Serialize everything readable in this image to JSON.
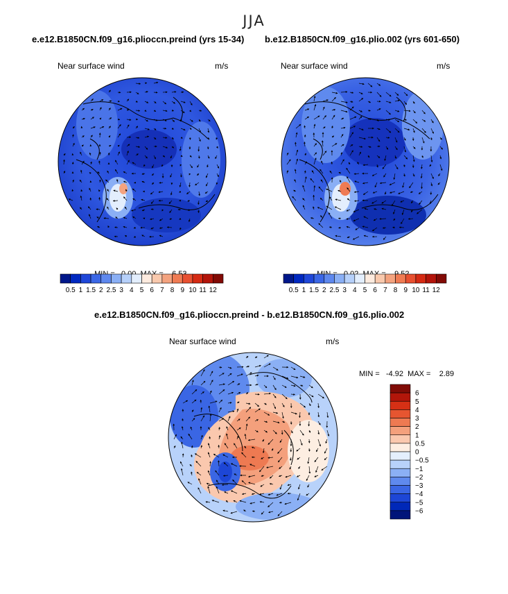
{
  "figure_title": "JJA",
  "palette_horizontal": [
    "#00178a",
    "#0028c0",
    "#1f47d9",
    "#3b67e6",
    "#5e88ee",
    "#8aaff5",
    "#b6d0fa",
    "#e3eefd",
    "#fdebdf",
    "#f9c9ad",
    "#f4a37f",
    "#ef7b53",
    "#e85030",
    "#d52a13",
    "#b3140a",
    "#820a05"
  ],
  "palette_vertical": [
    "#00157a",
    "#0028b8",
    "#1d46d6",
    "#3a66e4",
    "#5f8aee",
    "#8bb0f5",
    "#b8d2fa",
    "#e4effd",
    "#fdeee2",
    "#fac8ae",
    "#f4a07c",
    "#ee7a52",
    "#e65530",
    "#d63015",
    "#b2160a",
    "#800c06"
  ],
  "chart_data": [
    {
      "type": "heatmap",
      "projection": "north-polar-stereographic",
      "title": "e.e12.B1850CN.f09_g16.plioccn.preind (yrs 15-34)",
      "left_label": "Near surface wind",
      "units": "m/s",
      "min_label": "MIN =",
      "min_value": "0.00",
      "max_label": "MAX =",
      "max_value": "6.53",
      "colorbar_labels": [
        "0.5",
        "1",
        "1.5",
        "2",
        "2.5",
        "3",
        "4",
        "5",
        "6",
        "7",
        "8",
        "9",
        "10",
        "11",
        "12"
      ]
    },
    {
      "type": "heatmap",
      "projection": "north-polar-stereographic",
      "title": "b.e12.B1850CN.f09_g16.plio.002 (yrs 601-650)",
      "left_label": "Near surface wind",
      "units": "m/s",
      "min_label": "MIN =",
      "min_value": "0.02",
      "max_label": "MAX =",
      "max_value": "9.52",
      "colorbar_labels": [
        "0.5",
        "1",
        "1.5",
        "2",
        "2.5",
        "3",
        "4",
        "5",
        "6",
        "7",
        "8",
        "9",
        "10",
        "11",
        "12"
      ]
    },
    {
      "type": "heatmap",
      "projection": "north-polar-stereographic",
      "title": "e.e12.B1850CN.f09_g16.plioccn.preind - b.e12.B1850CN.f09_g16.plio.002",
      "left_label": "Near surface wind",
      "units": "m/s",
      "min_label": "MIN =",
      "min_value": "-4.92",
      "max_label": "MAX =",
      "max_value": "2.89",
      "colorbar_labels": [
        "6",
        "5",
        "4",
        "3",
        "2",
        "1",
        "0.5",
        "0",
        "−0.5",
        "−1",
        "−2",
        "−3",
        "−4",
        "−5",
        "−6"
      ]
    }
  ]
}
